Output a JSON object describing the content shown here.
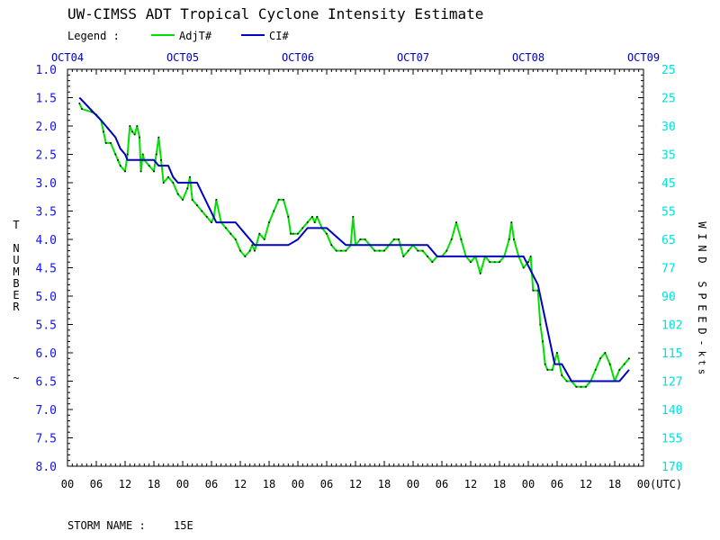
{
  "chart_data": {
    "type": "line",
    "title": "UW-CIMSS ADT Tropical Cyclone Intensity Estimate",
    "legend": {
      "label": "Legend :",
      "placement": "top-left"
    },
    "colors": {
      "frame": "#000000",
      "left_axis": "#1010ff",
      "right_axis": "#00e0e0",
      "adj": "#00e000",
      "ci": "#0000c0",
      "dots": "#000000"
    },
    "date_ticks": [
      "OCT04",
      "OCT05",
      "OCT06",
      "OCT07",
      "OCT08",
      "OCT09"
    ],
    "hour_ticks": [
      "00",
      "06",
      "12",
      "18",
      "00",
      "06",
      "12",
      "18",
      "00",
      "06",
      "12",
      "18",
      "00",
      "06",
      "12",
      "18",
      "00",
      "06",
      "12",
      "18",
      "00"
    ],
    "utc_label": "(UTC)",
    "x_range_hours": [
      0,
      120
    ],
    "y_range_tnumber": [
      1.0,
      8.0
    ],
    "y_inverted": true,
    "left_axis_label": "T NUMBER",
    "left_axis_extra": "~",
    "left_ticks": [
      "1.0",
      "1.5",
      "2.0",
      "2.5",
      "3.0",
      "3.5",
      "4.0",
      "4.5",
      "5.0",
      "5.5",
      "6.0",
      "6.5",
      "7.0",
      "7.5",
      "8.0"
    ],
    "right_axis_label": "WIND SPEED",
    "right_axis_unit": "kts",
    "right_ticks": [
      "25",
      "25",
      "30",
      "35",
      "45",
      "55",
      "65",
      "77",
      "90",
      "102",
      "115",
      "127",
      "140",
      "155",
      "170"
    ],
    "storm_name_label": "STORM NAME :",
    "storm_name": "15E",
    "series": [
      {
        "name": "AdjT#",
        "key": "adj",
        "points": [
          [
            2.5,
            1.6
          ],
          [
            3,
            1.7
          ],
          [
            5,
            1.75
          ],
          [
            6,
            1.8
          ],
          [
            7,
            1.9
          ],
          [
            7.5,
            2.1
          ],
          [
            8,
            2.3
          ],
          [
            9,
            2.3
          ],
          [
            10,
            2.5
          ],
          [
            10.5,
            2.6
          ],
          [
            11,
            2.7
          ],
          [
            12,
            2.8
          ],
          [
            12.5,
            2.5
          ],
          [
            13,
            2.0
          ],
          [
            13.5,
            2.1
          ],
          [
            14,
            2.15
          ],
          [
            14.5,
            2.0
          ],
          [
            15,
            2.2
          ],
          [
            15.3,
            2.8
          ],
          [
            15.7,
            2.5
          ],
          [
            16,
            2.6
          ],
          [
            17,
            2.7
          ],
          [
            18,
            2.8
          ],
          [
            18.5,
            2.5
          ],
          [
            19,
            2.2
          ],
          [
            19.5,
            2.6
          ],
          [
            20,
            3.0
          ],
          [
            21,
            2.9
          ],
          [
            22,
            3.0
          ],
          [
            23,
            3.2
          ],
          [
            24,
            3.3
          ],
          [
            25,
            3.1
          ],
          [
            25.5,
            2.9
          ],
          [
            26,
            3.3
          ],
          [
            27,
            3.4
          ],
          [
            28,
            3.5
          ],
          [
            29,
            3.6
          ],
          [
            30,
            3.7
          ],
          [
            30.5,
            3.6
          ],
          [
            31,
            3.3
          ],
          [
            32,
            3.7
          ],
          [
            33,
            3.8
          ],
          [
            34,
            3.9
          ],
          [
            35,
            4.0
          ],
          [
            36,
            4.2
          ],
          [
            37,
            4.3
          ],
          [
            38,
            4.2
          ],
          [
            38.5,
            4.1
          ],
          [
            39,
            4.2
          ],
          [
            40,
            3.9
          ],
          [
            41,
            4.0
          ],
          [
            42,
            3.7
          ],
          [
            43,
            3.5
          ],
          [
            44,
            3.3
          ],
          [
            45,
            3.3
          ],
          [
            46,
            3.6
          ],
          [
            46.5,
            3.9
          ],
          [
            47,
            3.9
          ],
          [
            48,
            3.9
          ],
          [
            49,
            3.8
          ],
          [
            50,
            3.7
          ],
          [
            51,
            3.6
          ],
          [
            51.5,
            3.7
          ],
          [
            52,
            3.6
          ],
          [
            53,
            3.8
          ],
          [
            54,
            3.9
          ],
          [
            55,
            4.1
          ],
          [
            56,
            4.2
          ],
          [
            57,
            4.2
          ],
          [
            58,
            4.2
          ],
          [
            59,
            4.1
          ],
          [
            59.5,
            3.6
          ],
          [
            60,
            4.1
          ],
          [
            61,
            4.0
          ],
          [
            62,
            4.0
          ],
          [
            63,
            4.1
          ],
          [
            64,
            4.2
          ],
          [
            65,
            4.2
          ],
          [
            66,
            4.2
          ],
          [
            67,
            4.1
          ],
          [
            68,
            4.0
          ],
          [
            69,
            4.0
          ],
          [
            70,
            4.3
          ],
          [
            71,
            4.2
          ],
          [
            72,
            4.1
          ],
          [
            73,
            4.2
          ],
          [
            74,
            4.2
          ],
          [
            75,
            4.3
          ],
          [
            76,
            4.4
          ],
          [
            77,
            4.3
          ],
          [
            78,
            4.3
          ],
          [
            79,
            4.2
          ],
          [
            80,
            4.0
          ],
          [
            81,
            3.7
          ],
          [
            82,
            4.0
          ],
          [
            83,
            4.3
          ],
          [
            84,
            4.4
          ],
          [
            85,
            4.3
          ],
          [
            86,
            4.6
          ],
          [
            87,
            4.3
          ],
          [
            88,
            4.4
          ],
          [
            89,
            4.4
          ],
          [
            90,
            4.4
          ],
          [
            91,
            4.3
          ],
          [
            92,
            4.0
          ],
          [
            92.5,
            3.7
          ],
          [
            93,
            4.0
          ],
          [
            94,
            4.3
          ],
          [
            95,
            4.5
          ],
          [
            96,
            4.4
          ],
          [
            96.5,
            4.3
          ],
          [
            97,
            4.9
          ],
          [
            98,
            4.9
          ],
          [
            98.5,
            5.5
          ],
          [
            99,
            5.8
          ],
          [
            99.5,
            6.2
          ],
          [
            100,
            6.3
          ],
          [
            101,
            6.3
          ],
          [
            102,
            6.0
          ],
          [
            103,
            6.4
          ],
          [
            104,
            6.5
          ],
          [
            105,
            6.5
          ],
          [
            106,
            6.6
          ],
          [
            107,
            6.6
          ],
          [
            108,
            6.6
          ],
          [
            109,
            6.5
          ],
          [
            110,
            6.3
          ],
          [
            111,
            6.1
          ],
          [
            112,
            6.0
          ],
          [
            113,
            6.2
          ],
          [
            114,
            6.5
          ],
          [
            115,
            6.3
          ],
          [
            116,
            6.2
          ],
          [
            117,
            6.1
          ]
        ]
      },
      {
        "name": "CI#",
        "key": "ci",
        "points": [
          [
            2.5,
            1.5
          ],
          [
            7,
            1.9
          ],
          [
            8,
            2.0
          ],
          [
            9,
            2.1
          ],
          [
            10,
            2.2
          ],
          [
            11,
            2.4
          ],
          [
            12,
            2.5
          ],
          [
            12.5,
            2.6
          ],
          [
            18,
            2.6
          ],
          [
            19,
            2.7
          ],
          [
            21,
            2.7
          ],
          [
            22,
            2.9
          ],
          [
            23,
            3.0
          ],
          [
            27,
            3.0
          ],
          [
            31,
            3.7
          ],
          [
            35,
            3.7
          ],
          [
            37,
            3.9
          ],
          [
            38,
            4.0
          ],
          [
            39,
            4.1
          ],
          [
            46,
            4.1
          ],
          [
            48,
            4.0
          ],
          [
            50,
            3.8
          ],
          [
            54,
            3.8
          ],
          [
            58,
            4.1
          ],
          [
            75,
            4.1
          ],
          [
            77,
            4.3
          ],
          [
            95,
            4.3
          ],
          [
            98,
            4.8
          ],
          [
            99,
            5.2
          ],
          [
            101,
            6.0
          ],
          [
            101.5,
            6.2
          ],
          [
            103,
            6.2
          ],
          [
            105,
            6.5
          ],
          [
            115,
            6.5
          ],
          [
            117,
            6.3
          ]
        ]
      }
    ]
  }
}
